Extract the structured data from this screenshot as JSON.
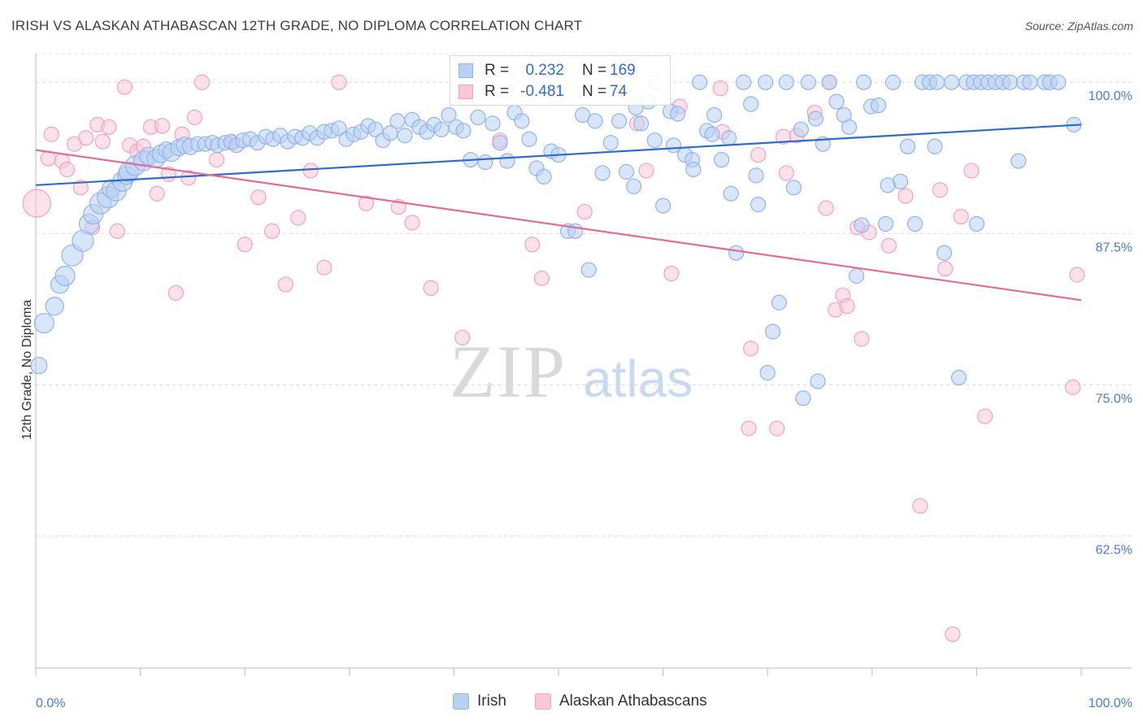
{
  "title": "IRISH VS ALASKAN ATHABASCAN 12TH GRADE, NO DIPLOMA CORRELATION CHART",
  "source": "Source: ZipAtlas.com",
  "watermark": {
    "zip": "ZIP",
    "atlas": "atlas"
  },
  "legend": {
    "r_label": "R =",
    "n_label": "N =",
    "series": [
      {
        "name": "Irish",
        "r": "0.232",
        "n": "169",
        "color": "#8fb4ea",
        "fill": "#b9d0f2",
        "line": "#2f6cc9"
      },
      {
        "name": "Alaskan Athabascans",
        "r": "-0.481",
        "n": "74",
        "color": "#f2a2bd",
        "fill": "#f7c9d8",
        "line": "#e06d97"
      }
    ]
  },
  "chart_data": {
    "type": "scatter",
    "xlabel": "",
    "ylabel": "12th Grade, No Diploma",
    "xlim": [
      0,
      100
    ],
    "ylim": [
      51.6,
      102.5
    ],
    "x_tick_labels": [
      "0.0%",
      "100.0%"
    ],
    "y_ticks": [
      {
        "value": 100.0,
        "label": "100.0%"
      },
      {
        "value": 87.5,
        "label": "87.5%"
      },
      {
        "value": 75.0,
        "label": "75.0%"
      },
      {
        "value": 62.5,
        "label": "62.5%"
      }
    ],
    "grid": true,
    "series": [
      {
        "name": "Irish",
        "trend": {
          "x": [
            0,
            100
          ],
          "y": [
            91.5,
            96.5
          ]
        },
        "points": [
          [
            0.3,
            76.6,
            10
          ],
          [
            0.8,
            80.1,
            12
          ],
          [
            1.8,
            81.5,
            11
          ],
          [
            2.3,
            83.3,
            11
          ],
          [
            2.8,
            84.0,
            12
          ],
          [
            3.5,
            85.7,
            13
          ],
          [
            4.5,
            86.9,
            13
          ],
          [
            5.1,
            88.3,
            12
          ],
          [
            5.5,
            89.1,
            12
          ],
          [
            6.2,
            90.0,
            13
          ],
          [
            6.9,
            90.5,
            13
          ],
          [
            7.2,
            91.2,
            11
          ],
          [
            7.7,
            91.0,
            12
          ],
          [
            8.3,
            91.8,
            12
          ],
          [
            8.7,
            92.3,
            11
          ],
          [
            8.9,
            92.6,
            12
          ],
          [
            9.5,
            93.1,
            12
          ],
          [
            10.3,
            93.5,
            12
          ],
          [
            10.8,
            93.9,
            11
          ],
          [
            11.5,
            93.7,
            11
          ],
          [
            12.0,
            94.1,
            11
          ],
          [
            12.5,
            94.4,
            10
          ],
          [
            13.0,
            94.2,
            11
          ],
          [
            13.7,
            94.6,
            10
          ],
          [
            14.2,
            94.8,
            10
          ],
          [
            14.8,
            94.7,
            10
          ],
          [
            15.5,
            94.9,
            9
          ],
          [
            16.2,
            94.9,
            9
          ],
          [
            16.9,
            95.0,
            9
          ],
          [
            17.4,
            94.8,
            9
          ],
          [
            18.1,
            95.0,
            9
          ],
          [
            18.7,
            95.1,
            9
          ],
          [
            19.2,
            94.8,
            9
          ],
          [
            19.8,
            95.2,
            9
          ],
          [
            20.5,
            95.3,
            9
          ],
          [
            21.2,
            95.0,
            9
          ],
          [
            22.0,
            95.5,
            9
          ],
          [
            22.7,
            95.3,
            9
          ],
          [
            23.4,
            95.6,
            9
          ],
          [
            24.1,
            95.1,
            9
          ],
          [
            24.8,
            95.5,
            9
          ],
          [
            25.5,
            95.4,
            9
          ],
          [
            26.2,
            95.8,
            9
          ],
          [
            26.9,
            95.4,
            9
          ],
          [
            27.6,
            95.9,
            9
          ],
          [
            28.3,
            96.0,
            9
          ],
          [
            29.0,
            96.2,
            9
          ],
          [
            29.7,
            95.3,
            9
          ],
          [
            30.4,
            95.7,
            9
          ],
          [
            31.1,
            95.9,
            9
          ],
          [
            31.8,
            96.4,
            9
          ],
          [
            32.5,
            96.1,
            9
          ],
          [
            33.2,
            95.2,
            9
          ],
          [
            33.9,
            95.8,
            9
          ],
          [
            34.6,
            96.8,
            9
          ],
          [
            35.3,
            95.6,
            9
          ],
          [
            36.0,
            96.9,
            9
          ],
          [
            36.7,
            96.3,
            9
          ],
          [
            37.4,
            95.9,
            9
          ],
          [
            38.1,
            96.5,
            9
          ],
          [
            38.8,
            96.1,
            9
          ],
          [
            39.5,
            97.3,
            9
          ],
          [
            40.2,
            96.3,
            9
          ],
          [
            40.9,
            96.0,
            9
          ],
          [
            41.6,
            93.6,
            9
          ],
          [
            42.3,
            97.1,
            9
          ],
          [
            43.0,
            93.4,
            9
          ],
          [
            43.7,
            96.6,
            9
          ],
          [
            44.4,
            95.0,
            9
          ],
          [
            45.1,
            93.5,
            9
          ],
          [
            45.8,
            97.5,
            9
          ],
          [
            46.5,
            96.8,
            9
          ],
          [
            47.2,
            95.3,
            9
          ],
          [
            47.9,
            92.9,
            9
          ],
          [
            48.6,
            92.2,
            9
          ],
          [
            49.3,
            94.3,
            9
          ],
          [
            50.0,
            94.0,
            9
          ],
          [
            50.9,
            87.7,
            9
          ],
          [
            51.6,
            87.7,
            9
          ],
          [
            52.3,
            97.3,
            9
          ],
          [
            52.9,
            84.5,
            9
          ],
          [
            53.5,
            96.8,
            9
          ],
          [
            54.2,
            92.5,
            9
          ],
          [
            55.0,
            95.0,
            9
          ],
          [
            55.8,
            96.8,
            9
          ],
          [
            56.5,
            92.6,
            9
          ],
          [
            57.2,
            91.4,
            9
          ],
          [
            57.9,
            96.6,
            9
          ],
          [
            58.6,
            98.4,
            9
          ],
          [
            59.3,
            100.0,
            9
          ],
          [
            60.0,
            89.8,
            9
          ],
          [
            60.7,
            97.6,
            9
          ],
          [
            61.4,
            97.4,
            9
          ],
          [
            62.1,
            94.0,
            9
          ],
          [
            62.8,
            93.6,
            9
          ],
          [
            63.5,
            100.0,
            9
          ],
          [
            64.2,
            96.0,
            9
          ],
          [
            64.9,
            97.3,
            9
          ],
          [
            65.6,
            93.6,
            9
          ],
          [
            66.3,
            95.4,
            9
          ],
          [
            67.0,
            85.9,
            9
          ],
          [
            67.7,
            100.0,
            9
          ],
          [
            68.4,
            98.2,
            9
          ],
          [
            69.1,
            89.9,
            9
          ],
          [
            69.8,
            100.0,
            9
          ],
          [
            70.5,
            79.4,
            9
          ],
          [
            71.1,
            81.8,
            9
          ],
          [
            71.8,
            100.0,
            9
          ],
          [
            72.5,
            91.3,
            9
          ],
          [
            73.2,
            96.1,
            9
          ],
          [
            73.9,
            100.0,
            9
          ],
          [
            74.6,
            97.0,
            9
          ],
          [
            75.3,
            94.9,
            9
          ],
          [
            75.9,
            100.0,
            9
          ],
          [
            76.6,
            98.4,
            9
          ],
          [
            77.3,
            97.3,
            9
          ],
          [
            77.8,
            96.3,
            9
          ],
          [
            78.5,
            84.0,
            9
          ],
          [
            79.2,
            100.0,
            9
          ],
          [
            79.9,
            98.0,
            9
          ],
          [
            80.6,
            98.1,
            9
          ],
          [
            81.3,
            88.3,
            9
          ],
          [
            82.0,
            100.0,
            9
          ],
          [
            82.7,
            91.8,
            9
          ],
          [
            83.4,
            94.7,
            9
          ],
          [
            84.1,
            88.3,
            9
          ],
          [
            84.8,
            100.0,
            9
          ],
          [
            85.5,
            100.0,
            9
          ],
          [
            86.2,
            100.0,
            9
          ],
          [
            86.9,
            85.9,
            9
          ],
          [
            87.6,
            100.0,
            9
          ],
          [
            88.3,
            75.6,
            9
          ],
          [
            89.0,
            100.0,
            9
          ],
          [
            89.7,
            100.0,
            9
          ],
          [
            90.4,
            100.0,
            9
          ],
          [
            91.1,
            100.0,
            9
          ],
          [
            91.8,
            100.0,
            9
          ],
          [
            92.5,
            100.0,
            9
          ],
          [
            93.2,
            100.0,
            9
          ],
          [
            94.5,
            100.0,
            9
          ],
          [
            95.1,
            100.0,
            9
          ],
          [
            96.5,
            100.0,
            9
          ],
          [
            97.0,
            100.0,
            9
          ],
          [
            97.8,
            100.0,
            9
          ],
          [
            99.3,
            96.5,
            9
          ],
          [
            94.0,
            93.5,
            9
          ],
          [
            90.0,
            88.3,
            9
          ],
          [
            86.0,
            94.7,
            9
          ],
          [
            81.5,
            91.5,
            9
          ],
          [
            79.0,
            88.2,
            9
          ],
          [
            74.8,
            75.3,
            9
          ],
          [
            73.4,
            73.9,
            9
          ],
          [
            70.0,
            76.0,
            9
          ],
          [
            68.9,
            92.3,
            9
          ],
          [
            66.5,
            90.8,
            9
          ],
          [
            64.7,
            95.7,
            9
          ],
          [
            62.9,
            92.8,
            9
          ],
          [
            61.0,
            94.8,
            9
          ],
          [
            59.2,
            95.2,
            9
          ],
          [
            57.4,
            97.9,
            9
          ]
        ]
      },
      {
        "name": "Alaskan Athabascans",
        "trend": {
          "x": [
            0,
            100
          ],
          "y": [
            94.4,
            82.0
          ]
        },
        "points": [
          [
            0.1,
            90.0,
            17
          ],
          [
            1.5,
            95.7,
            9
          ],
          [
            1.2,
            93.7,
            9
          ],
          [
            2.5,
            93.5,
            9
          ],
          [
            3.0,
            92.8,
            9
          ],
          [
            3.7,
            94.9,
            9
          ],
          [
            4.3,
            91.3,
            9
          ],
          [
            4.8,
            95.4,
            9
          ],
          [
            5.4,
            88.0,
            9
          ],
          [
            5.9,
            96.5,
            9
          ],
          [
            6.4,
            95.1,
            9
          ],
          [
            7.0,
            96.3,
            9
          ],
          [
            7.8,
            87.7,
            9
          ],
          [
            8.5,
            99.6,
            9
          ],
          [
            9.0,
            94.8,
            9
          ],
          [
            9.7,
            94.3,
            9
          ],
          [
            10.3,
            94.7,
            9
          ],
          [
            11.0,
            96.3,
            9
          ],
          [
            11.6,
            90.8,
            9
          ],
          [
            12.1,
            96.4,
            9
          ],
          [
            12.7,
            92.4,
            9
          ],
          [
            13.4,
            82.6,
            9
          ],
          [
            14.0,
            95.7,
            9
          ],
          [
            14.6,
            92.1,
            9
          ],
          [
            15.2,
            97.1,
            9
          ],
          [
            15.9,
            100.0,
            9
          ],
          [
            17.3,
            93.6,
            9
          ],
          [
            18.8,
            95.0,
            9
          ],
          [
            20.0,
            86.6,
            9
          ],
          [
            21.3,
            90.5,
            9
          ],
          [
            22.6,
            87.7,
            9
          ],
          [
            23.9,
            83.3,
            9
          ],
          [
            25.1,
            88.8,
            9
          ],
          [
            26.3,
            92.7,
            9
          ],
          [
            27.6,
            84.7,
            9
          ],
          [
            29.0,
            100.0,
            9
          ],
          [
            31.6,
            90.0,
            9
          ],
          [
            34.7,
            89.7,
            9
          ],
          [
            36.0,
            88.4,
            9
          ],
          [
            37.8,
            83.0,
            9
          ],
          [
            40.8,
            78.9,
            9
          ],
          [
            44.4,
            95.2,
            9
          ],
          [
            47.5,
            86.6,
            9
          ],
          [
            48.4,
            83.8,
            9
          ],
          [
            52.5,
            89.3,
            9
          ],
          [
            57.5,
            96.6,
            9
          ],
          [
            58.4,
            92.7,
            9
          ],
          [
            60.8,
            84.2,
            9
          ],
          [
            61.6,
            98.0,
            9
          ],
          [
            65.5,
            99.5,
            9
          ],
          [
            68.4,
            78.0,
            9
          ],
          [
            68.2,
            71.4,
            9
          ],
          [
            69.1,
            94.0,
            9
          ],
          [
            70.9,
            71.4,
            9
          ],
          [
            71.8,
            92.5,
            9
          ],
          [
            72.8,
            95.6,
            9
          ],
          [
            74.5,
            97.5,
            9
          ],
          [
            75.6,
            89.6,
            9
          ],
          [
            76.5,
            81.2,
            9
          ],
          [
            77.2,
            82.4,
            9
          ],
          [
            77.6,
            81.5,
            9
          ],
          [
            78.6,
            88.0,
            9
          ],
          [
            79.7,
            87.6,
            9
          ],
          [
            79.0,
            78.8,
            9
          ],
          [
            81.6,
            86.5,
            9
          ],
          [
            83.2,
            90.6,
            9
          ],
          [
            84.6,
            65.0,
            9
          ],
          [
            86.5,
            91.1,
            9
          ],
          [
            87.0,
            84.6,
            9
          ],
          [
            87.7,
            54.4,
            9
          ],
          [
            88.5,
            88.9,
            9
          ],
          [
            89.5,
            92.7,
            9
          ],
          [
            90.8,
            72.4,
            9
          ],
          [
            99.2,
            74.8,
            9
          ],
          [
            99.6,
            84.1,
            9
          ],
          [
            75.9,
            100.0,
            9
          ],
          [
            71.5,
            95.5,
            9
          ],
          [
            65.7,
            95.9,
            9
          ]
        ]
      }
    ]
  }
}
